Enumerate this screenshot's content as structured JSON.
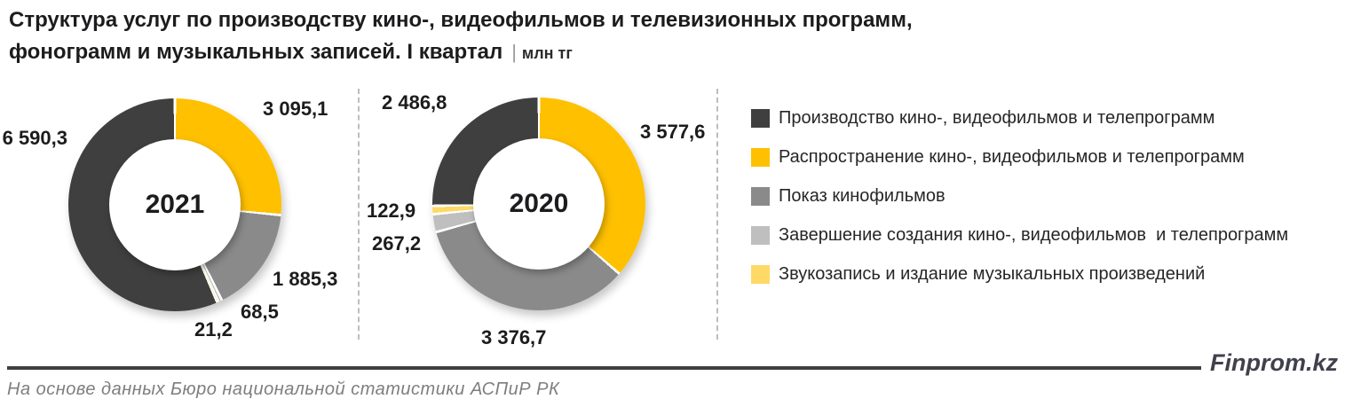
{
  "title": {
    "line1": "Структура услуг по производству кино-, видеофильмов и телевизионных программ,",
    "line2": "фонограмм и музыкальных записей. I квартал",
    "separator": "|",
    "unit": "млн тг"
  },
  "chart_data": [
    {
      "type": "pie",
      "donut": true,
      "center_label": "2021",
      "categories": [
        "Производство кино-, видеофильмов и телепрограмм",
        "Распространение кино-, видеофильмов и телепрограмм",
        "Показ кинофильмов",
        "Завершение создания кино-, видеофильмов  и телепрограмм",
        "Звукозапись и издание музыкальных произведений"
      ],
      "values": [
        6590.3,
        3095.1,
        1885.3,
        68.5,
        21.2
      ],
      "value_labels": [
        "6 590,3",
        "3 095,1",
        "1 885,3",
        "68,5",
        "21,2"
      ],
      "colors": [
        "#3F3F3F",
        "#FFC000",
        "#8A8A8A",
        "#BFBFBF",
        "#FFD966"
      ],
      "draw_order": [
        1,
        2,
        3,
        4,
        0
      ],
      "start_angle_deg": 0,
      "direction": "clockwise",
      "unit": "млн тг"
    },
    {
      "type": "pie",
      "donut": true,
      "center_label": "2020",
      "categories": [
        "Производство кино-, видеофильмов и телепрограмм",
        "Распространение кино-, видеофильмов и телепрограмм",
        "Показ кинофильмов",
        "Завершение создания кино-, видеофильмов  и телепрограмм",
        "Звукозапись и издание музыкальных произведений"
      ],
      "values": [
        2486.8,
        3577.6,
        3376.7,
        267.2,
        122.9
      ],
      "value_labels": [
        "2 486,8",
        "3 577,6",
        "3 376,7",
        "267,2",
        "122,9"
      ],
      "colors": [
        "#3F3F3F",
        "#FFC000",
        "#8A8A8A",
        "#BFBFBF",
        "#FFD966"
      ],
      "draw_order": [
        1,
        2,
        3,
        4,
        0
      ],
      "start_angle_deg": 0,
      "direction": "clockwise",
      "unit": "млн тг"
    }
  ],
  "legend": {
    "position": "right",
    "items": [
      {
        "label": "Производство кино-, видеофильмов и телепрограмм",
        "color": "#3F3F3F"
      },
      {
        "label": "Распространение кино-, видеофильмов и телепрограмм",
        "color": "#FFC000"
      },
      {
        "label": "Показ кинофильмов",
        "color": "#8A8A8A"
      },
      {
        "label": "Завершение создания кино-, видеофильмов  и телепрограмм",
        "color": "#BFBFBF"
      },
      {
        "label": "Звукозапись и издание музыкальных произведений",
        "color": "#FFD966"
      }
    ]
  },
  "footer": {
    "brand": "Finprom.kz",
    "source": "На основе данных Бюро национальной статистики АСПиР РК"
  }
}
